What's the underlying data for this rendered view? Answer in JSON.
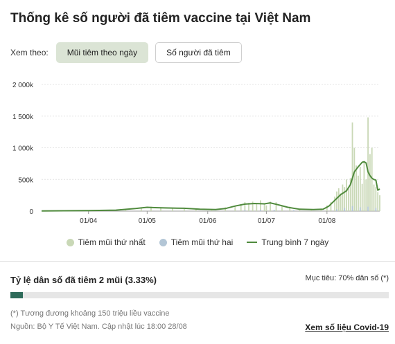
{
  "title": "Thống kê số người đã tiêm vaccine tại Việt Nam",
  "view": {
    "label": "Xem theo:",
    "buttons": [
      "Mũi tiêm theo ngày",
      "Số người đã tiêm"
    ],
    "selected": "Mũi tiêm theo ngày"
  },
  "colors": {
    "first_dose": "#c9d8b6",
    "second_dose": "#b3c6d6",
    "avg_line": "#4f8a3c",
    "progress": "#2e6b5a"
  },
  "chart_data": {
    "type": "bar",
    "title": "",
    "xlabel": "",
    "ylabel": "",
    "ylim": [
      0,
      2000000
    ],
    "yticks": [
      0,
      500000,
      1000000,
      1500000,
      2000000
    ],
    "ytick_labels": [
      "0",
      "500k",
      "1 000k",
      "1 500k",
      "2 000k"
    ],
    "x_range": [
      "2021-03-08",
      "2021-08-28"
    ],
    "xtick_dates": [
      "2021-04-01",
      "2021-05-01",
      "2021-06-01",
      "2021-07-01",
      "2021-08-01"
    ],
    "xtick_labels": [
      "01/04",
      "01/05",
      "01/06",
      "01/07",
      "01/08"
    ],
    "grid": true,
    "legend_position": "bottom",
    "series": [
      {
        "name": "Tiêm mũi thứ nhất",
        "kind": "bar",
        "points": [
          [
            "2021-04-20",
            30000
          ],
          [
            "2021-04-28",
            45000
          ],
          [
            "2021-05-03",
            70000
          ],
          [
            "2021-05-08",
            60000
          ],
          [
            "2021-05-14",
            45000
          ],
          [
            "2021-05-20",
            40000
          ],
          [
            "2021-05-26",
            30000
          ],
          [
            "2021-06-03",
            25000
          ],
          [
            "2021-06-10",
            60000
          ],
          [
            "2021-06-15",
            70000
          ],
          [
            "2021-06-18",
            110000
          ],
          [
            "2021-06-20",
            140000
          ],
          [
            "2021-06-22",
            130000
          ],
          [
            "2021-06-24",
            150000
          ],
          [
            "2021-06-26",
            120000
          ],
          [
            "2021-06-28",
            170000
          ],
          [
            "2021-06-30",
            110000
          ],
          [
            "2021-07-01",
            90000
          ],
          [
            "2021-07-03",
            150000
          ],
          [
            "2021-07-06",
            140000
          ],
          [
            "2021-07-09",
            90000
          ],
          [
            "2021-07-13",
            70000
          ],
          [
            "2021-07-18",
            40000
          ],
          [
            "2021-07-24",
            25000
          ],
          [
            "2021-07-29",
            40000
          ],
          [
            "2021-08-01",
            90000
          ],
          [
            "2021-08-03",
            140000
          ],
          [
            "2021-08-05",
            230000
          ],
          [
            "2021-08-06",
            310000
          ],
          [
            "2021-08-07",
            360000
          ],
          [
            "2021-08-08",
            280000
          ],
          [
            "2021-08-09",
            420000
          ],
          [
            "2021-08-10",
            380000
          ],
          [
            "2021-08-11",
            500000
          ],
          [
            "2021-08-12",
            350000
          ],
          [
            "2021-08-13",
            520000
          ],
          [
            "2021-08-14",
            1400000
          ],
          [
            "2021-08-15",
            1000000
          ],
          [
            "2021-08-16",
            720000
          ],
          [
            "2021-08-17",
            560000
          ],
          [
            "2021-08-18",
            700000
          ],
          [
            "2021-08-19",
            430000
          ],
          [
            "2021-08-20",
            780000
          ],
          [
            "2021-08-21",
            500000
          ],
          [
            "2021-08-22",
            1480000
          ],
          [
            "2021-08-23",
            900000
          ],
          [
            "2021-08-24",
            1000000
          ],
          [
            "2021-08-25",
            420000
          ],
          [
            "2021-08-26",
            380000
          ],
          [
            "2021-08-27",
            300000
          ],
          [
            "2021-08-28",
            250000
          ]
        ]
      },
      {
        "name": "Tiêm mũi thứ hai",
        "kind": "bar",
        "points": [
          [
            "2021-06-20",
            15000
          ],
          [
            "2021-06-28",
            20000
          ],
          [
            "2021-07-05",
            20000
          ],
          [
            "2021-07-15",
            15000
          ],
          [
            "2021-08-06",
            30000
          ],
          [
            "2021-08-10",
            50000
          ],
          [
            "2021-08-14",
            80000
          ],
          [
            "2021-08-18",
            60000
          ],
          [
            "2021-08-22",
            70000
          ],
          [
            "2021-08-26",
            50000
          ]
        ]
      },
      {
        "name": "Trung bình 7 ngày",
        "kind": "line",
        "points": [
          [
            "2021-03-08",
            2000
          ],
          [
            "2021-03-31",
            8000
          ],
          [
            "2021-04-15",
            15000
          ],
          [
            "2021-04-25",
            40000
          ],
          [
            "2021-05-01",
            60000
          ],
          [
            "2021-05-05",
            55000
          ],
          [
            "2021-05-10",
            50000
          ],
          [
            "2021-05-20",
            45000
          ],
          [
            "2021-05-28",
            30000
          ],
          [
            "2021-06-05",
            25000
          ],
          [
            "2021-06-10",
            40000
          ],
          [
            "2021-06-15",
            80000
          ],
          [
            "2021-06-20",
            110000
          ],
          [
            "2021-06-25",
            120000
          ],
          [
            "2021-06-30",
            115000
          ],
          [
            "2021-07-03",
            130000
          ],
          [
            "2021-07-07",
            100000
          ],
          [
            "2021-07-12",
            60000
          ],
          [
            "2021-07-18",
            30000
          ],
          [
            "2021-07-25",
            25000
          ],
          [
            "2021-07-30",
            30000
          ],
          [
            "2021-08-02",
            80000
          ],
          [
            "2021-08-05",
            170000
          ],
          [
            "2021-08-08",
            260000
          ],
          [
            "2021-08-11",
            320000
          ],
          [
            "2021-08-13",
            420000
          ],
          [
            "2021-08-15",
            620000
          ],
          [
            "2021-08-17",
            700000
          ],
          [
            "2021-08-19",
            770000
          ],
          [
            "2021-08-20",
            780000
          ],
          [
            "2021-08-21",
            760000
          ],
          [
            "2021-08-22",
            620000
          ],
          [
            "2021-08-23",
            560000
          ],
          [
            "2021-08-24",
            520000
          ],
          [
            "2021-08-25",
            500000
          ],
          [
            "2021-08-26",
            490000
          ],
          [
            "2021-08-27",
            330000
          ],
          [
            "2021-08-28",
            350000
          ]
        ]
      }
    ]
  },
  "legend": {
    "first_dose": "Tiêm mũi thứ nhất",
    "second_dose": "Tiêm mũi thứ hai",
    "avg": "Trung bình 7 ngày"
  },
  "rate": {
    "label": "Tỷ lệ dân số đã tiêm 2 mũi (3.33%)",
    "fraction": 0.0333,
    "target": "Mục tiêu: 70% dân số (*)"
  },
  "footer": {
    "note": "(*) Tương đương khoảng 150 triệu liều vaccine",
    "source": "Nguồn: Bộ Y Tế Việt Nam. Cập nhật lúc 18:00 28/08",
    "link": "Xem số liệu Covid-19"
  }
}
